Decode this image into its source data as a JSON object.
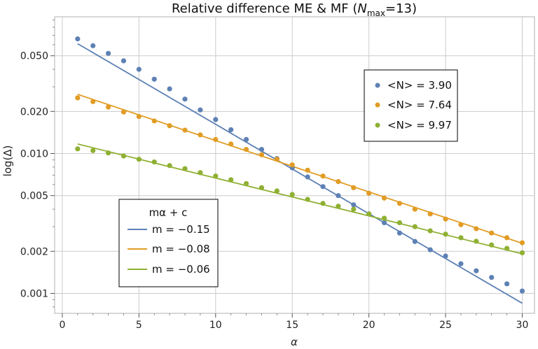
{
  "chart_data": {
    "type": "scatter",
    "title": "Relative difference ME & MF (",
    "title_italic": "N",
    "title_sub": "max",
    "title_tail": "=13)",
    "xlabel": "α",
    "ylabel": "log(Δ)",
    "xlim": [
      -0.5,
      30.8
    ],
    "ylim": [
      0.00072,
      0.095
    ],
    "yscale": "log",
    "grid": true,
    "x_ticks": [
      0,
      5,
      10,
      15,
      20,
      25,
      30
    ],
    "x_tick_labels": [
      "0",
      "5",
      "10",
      "15",
      "20",
      "25",
      "30"
    ],
    "y_ticks": [
      0.001,
      0.002,
      0.005,
      0.01,
      0.02,
      0.05
    ],
    "y_tick_labels": [
      "0.001",
      "0.002",
      "0.005",
      "0.010",
      "0.020",
      "0.050"
    ],
    "series": [
      {
        "name": "<N> = 3.90",
        "color": "#5e81b5",
        "x": [
          1,
          2,
          3,
          4,
          5,
          6,
          7,
          8,
          9,
          10,
          11,
          12,
          13,
          14,
          15,
          16,
          17,
          18,
          19,
          20,
          21,
          22,
          23,
          24,
          25,
          26,
          27,
          28,
          29,
          30
        ],
        "y": [
          0.066,
          0.059,
          0.052,
          0.046,
          0.04,
          0.034,
          0.029,
          0.0245,
          0.0205,
          0.0175,
          0.0148,
          0.0126,
          0.0107,
          0.0092,
          0.0079,
          0.0068,
          0.0058,
          0.005,
          0.0043,
          0.0037,
          0.0032,
          0.0027,
          0.00235,
          0.00205,
          0.00185,
          0.00163,
          0.00145,
          0.0013,
          0.00117,
          0.00104
        ]
      },
      {
        "name": "<N> = 7.64",
        "color": "#e19c24",
        "x": [
          1,
          2,
          3,
          4,
          5,
          6,
          7,
          8,
          9,
          10,
          11,
          12,
          13,
          14,
          15,
          16,
          17,
          18,
          19,
          20,
          21,
          22,
          23,
          24,
          25,
          26,
          27,
          28,
          29,
          30
        ],
        "y": [
          0.025,
          0.0235,
          0.0215,
          0.0198,
          0.0184,
          0.0171,
          0.0158,
          0.0147,
          0.0136,
          0.0126,
          0.0117,
          0.0107,
          0.0098,
          0.0091,
          0.0083,
          0.0076,
          0.0069,
          0.0063,
          0.0057,
          0.0052,
          0.0048,
          0.0044,
          0.004,
          0.0037,
          0.0034,
          0.0031,
          0.0029,
          0.0027,
          0.0025,
          0.0023
        ]
      },
      {
        "name": "<N> = 9.97",
        "color": "#8fb032",
        "x": [
          1,
          2,
          3,
          4,
          5,
          6,
          7,
          8,
          9,
          10,
          11,
          12,
          13,
          14,
          15,
          16,
          17,
          18,
          19,
          20,
          21,
          22,
          23,
          24,
          25,
          26,
          27,
          28,
          29,
          30
        ],
        "y": [
          0.0108,
          0.0105,
          0.0101,
          0.0096,
          0.0091,
          0.0087,
          0.0082,
          0.0078,
          0.0073,
          0.0069,
          0.0065,
          0.0061,
          0.0057,
          0.0054,
          0.0051,
          0.0047,
          0.0044,
          0.0042,
          0.004,
          0.0037,
          0.00345,
          0.0032,
          0.003,
          0.0028,
          0.00265,
          0.0025,
          0.00236,
          0.00222,
          0.0021,
          0.00195
        ]
      }
    ],
    "fits": [
      {
        "name": "m = −0.15",
        "color": "#5e81b5",
        "x": [
          1,
          30
        ],
        "y": [
          0.061,
          0.00085
        ]
      },
      {
        "name": "m = −0.08",
        "color": "#e19c24",
        "x": [
          1,
          30
        ],
        "y": [
          0.0265,
          0.00228
        ]
      },
      {
        "name": "m = −0.06",
        "color": "#8fb032",
        "x": [
          1,
          30
        ],
        "y": [
          0.0117,
          0.00192
        ]
      }
    ],
    "legend_points": {
      "placement": "upper-right",
      "entries": [
        "<N> = 3.90",
        "<N> = 7.64",
        "<N> = 9.97"
      ]
    },
    "legend_fits": {
      "placement": "lower-left",
      "title": "mα + c",
      "entries": [
        "m = −0.15",
        "m = −0.08",
        "m = −0.06"
      ]
    }
  }
}
